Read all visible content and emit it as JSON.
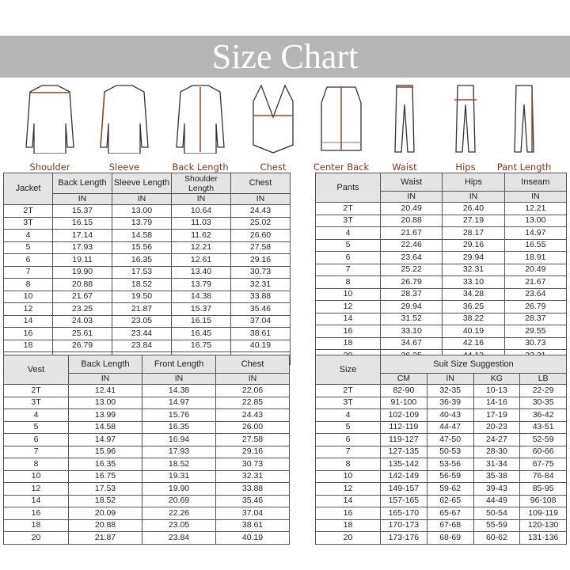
{
  "title": "Size Chart",
  "colors": {
    "banner": "#b5b5b5",
    "label": "#7a3a1a",
    "header_bg": "#e4e4e4"
  },
  "figures": [
    {
      "label": "Shoulder",
      "icon": "jacket-back-shoulder-icon"
    },
    {
      "label": "Sleeve",
      "icon": "jacket-sleeve-icon"
    },
    {
      "label": "Back Length",
      "icon": "jacket-back-length-icon"
    },
    {
      "label": "Chest",
      "icon": "vest-chest-icon"
    },
    {
      "label": "Center Back",
      "icon": "vest-center-back-icon"
    },
    {
      "label": "Waist",
      "icon": "pants-waist-icon"
    },
    {
      "label": "Hips",
      "icon": "pants-hips-icon"
    },
    {
      "label": "Pant Length",
      "icon": "pants-length-icon"
    }
  ],
  "tables": {
    "jacket": {
      "corner": "Jacket",
      "headers": [
        "Back Length",
        "Sleeve Length",
        "Shoulder Length",
        "Chest"
      ],
      "units": [
        "IN",
        "IN",
        "IN",
        "IN"
      ],
      "rows": [
        [
          "2T",
          "15.37",
          "13.00",
          "10.64",
          "24.43"
        ],
        [
          "3T",
          "16.15",
          "13.79",
          "11.03",
          "25.02"
        ],
        [
          "4",
          "17.14",
          "14.58",
          "11.62",
          "26.60"
        ],
        [
          "5",
          "17.93",
          "15.56",
          "12.21",
          "27.58"
        ],
        [
          "6",
          "19.11",
          "16.35",
          "12.61",
          "29.16"
        ],
        [
          "7",
          "19.90",
          "17.53",
          "13.40",
          "30.73"
        ],
        [
          "8",
          "20.88",
          "18.52",
          "13.79",
          "32.31"
        ],
        [
          "10",
          "21.67",
          "19.50",
          "14.38",
          "33.88"
        ],
        [
          "12",
          "23.25",
          "21.87",
          "15.37",
          "35.46"
        ],
        [
          "14",
          "24.03",
          "23.05",
          "16.15",
          "37.04"
        ],
        [
          "16",
          "25.61",
          "23.44",
          "16.45",
          "38.61"
        ],
        [
          "18",
          "26.79",
          "23.84",
          "16.75",
          "40.19"
        ],
        [
          "20",
          "28.37",
          "24.23",
          "17.14",
          "41.76"
        ]
      ]
    },
    "pants": {
      "corner": "Pants",
      "headers": [
        "Waist",
        "Hips",
        "Inseam"
      ],
      "units": [
        "IN",
        "IN",
        "IN"
      ],
      "rows": [
        [
          "2T",
          "20.49",
          "26.40",
          "12.21"
        ],
        [
          "3T",
          "20.88",
          "27.19",
          "13.00"
        ],
        [
          "4",
          "21.67",
          "28.17",
          "14.97"
        ],
        [
          "5",
          "22.46",
          "29.16",
          "16.55"
        ],
        [
          "6",
          "23.64",
          "29.94",
          "18.91"
        ],
        [
          "7",
          "25.22",
          "32.31",
          "20.49"
        ],
        [
          "8",
          "26.79",
          "33.10",
          "21.67"
        ],
        [
          "10",
          "28.37",
          "34.28",
          "23.64"
        ],
        [
          "12",
          "29.94",
          "36.25",
          "26.79"
        ],
        [
          "14",
          "31.52",
          "38.22",
          "28.37"
        ],
        [
          "16",
          "33.10",
          "40.19",
          "29.55"
        ],
        [
          "18",
          "34.67",
          "42.16",
          "30.73"
        ],
        [
          "20",
          "36.25",
          "44.13",
          "32.31"
        ]
      ]
    },
    "vest": {
      "corner": "Vest",
      "headers": [
        "Back Length",
        "Front Length",
        "Chest"
      ],
      "units": [
        "IN",
        "IN",
        "IN"
      ],
      "rows": [
        [
          "2T",
          "12.41",
          "14.38",
          "22.06"
        ],
        [
          "3T",
          "13.00",
          "14.97",
          "22.85"
        ],
        [
          "4",
          "13.99",
          "15.76",
          "24.43"
        ],
        [
          "5",
          "14.58",
          "16.35",
          "26.00"
        ],
        [
          "6",
          "14.97",
          "16.94",
          "27.58"
        ],
        [
          "7",
          "15.96",
          "17.93",
          "29.16"
        ],
        [
          "8",
          "16.35",
          "18.52",
          "30.73"
        ],
        [
          "10",
          "16.75",
          "19.31",
          "32.31"
        ],
        [
          "12",
          "17.53",
          "19.90",
          "33.88"
        ],
        [
          "14",
          "18.52",
          "20.69",
          "35.46"
        ],
        [
          "16",
          "20.09",
          "22.26",
          "37.04"
        ],
        [
          "18",
          "20.88",
          "23.05",
          "38.61"
        ],
        [
          "20",
          "21.87",
          "23.84",
          "40.19"
        ]
      ]
    },
    "size": {
      "corner": "Size",
      "group_header": "Suit Size Suggestion",
      "units": [
        "CM",
        "IN",
        "KG",
        "LB"
      ],
      "rows": [
        [
          "2T",
          "82-90",
          "32-35",
          "10-13",
          "22-29"
        ],
        [
          "3T",
          "91-100",
          "36-39",
          "14-16",
          "30-35"
        ],
        [
          "4",
          "102-109",
          "40-43",
          "17-19",
          "36-42"
        ],
        [
          "5",
          "112-119",
          "44-47",
          "20-23",
          "43-51"
        ],
        [
          "6",
          "119-127",
          "47-50",
          "24-27",
          "52-59"
        ],
        [
          "7",
          "127-135",
          "50-53",
          "28-30",
          "60-66"
        ],
        [
          "8",
          "135-142",
          "53-56",
          "31-34",
          "67-75"
        ],
        [
          "10",
          "142-149",
          "56-59",
          "35-38",
          "76-84"
        ],
        [
          "12",
          "149-157",
          "59-62",
          "39-43",
          "85-95"
        ],
        [
          "14",
          "157-165",
          "62-65",
          "44-49",
          "96-108"
        ],
        [
          "16",
          "165-170",
          "65-67",
          "50-54",
          "109-119"
        ],
        [
          "18",
          "170-173",
          "67-68",
          "55-59",
          "120-130"
        ],
        [
          "20",
          "173-176",
          "68-69",
          "60-62",
          "131-136"
        ]
      ]
    }
  }
}
